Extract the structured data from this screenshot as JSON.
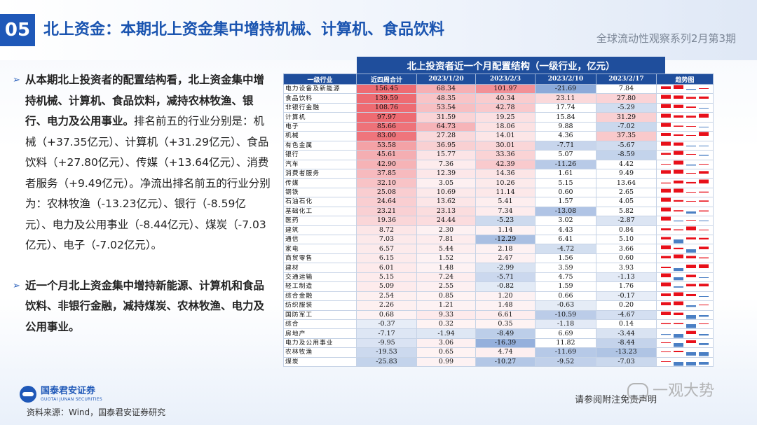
{
  "header": {
    "section": "05",
    "title": "北上资金：本期北上资金集中增持机械、计算机、食品饮料",
    "series": "全球流动性观察系列2月第3期"
  },
  "bullets": [
    {
      "bold": "从本期北上投资者的配置结构看，北上资金集中增持机械、计算机、食品饮料，减持农林牧渔、银行、电力及公用事业。",
      "normal": "排名前五的行业分别是：机械（+37.35亿元）、计算机（+31.29亿元）、食品饮料（+27.80亿元）、传媒（+13.64亿元）、消费者服务（+9.49亿元）。净流出排名前五的行业分别为：农林牧渔（-13.23亿元）、银行（-8.59亿元）、电力及公用事业（-8.44亿元）、煤炭（-7.03亿元）、电子（-7.02亿元）。"
    },
    {
      "bold": "近一个月北上资金集中增持新能源、计算机和食品饮料、非银行金融，减持煤炭、农林牧渔、电力及公用事业。",
      "normal": ""
    }
  ],
  "table": {
    "title": "北上投资者近一个月配置结构（一级行业，亿元）",
    "headers": [
      "一级行业",
      "近四周合计",
      "2023/1/20",
      "2023/2/3",
      "2023/2/10",
      "2023/2/17",
      "趋势图"
    ],
    "rows": [
      [
        "电力设备及新能源",
        156.45,
        68.34,
        101.97,
        -21.69,
        7.84
      ],
      [
        "食品饮料",
        139.59,
        48.35,
        40.34,
        23.11,
        27.8
      ],
      [
        "非银行金融",
        108.76,
        53.54,
        42.78,
        17.74,
        -5.29
      ],
      [
        "计算机",
        97.97,
        31.59,
        19.25,
        15.84,
        31.29
      ],
      [
        "电子",
        85.66,
        64.73,
        18.06,
        9.88,
        -7.02
      ],
      [
        "机械",
        83.0,
        27.28,
        14.01,
        4.36,
        37.35
      ],
      [
        "有色金属",
        53.58,
        36.95,
        30.01,
        -7.71,
        -5.67
      ],
      [
        "银行",
        45.61,
        15.77,
        33.36,
        5.07,
        -8.59
      ],
      [
        "汽车",
        42.9,
        7.36,
        42.39,
        -11.26,
        4.42
      ],
      [
        "消费者服务",
        37.85,
        12.39,
        14.36,
        1.61,
        9.49
      ],
      [
        "传媒",
        32.1,
        3.05,
        10.26,
        5.15,
        13.64
      ],
      [
        "钢铁",
        25.08,
        10.69,
        11.14,
        0.6,
        2.65
      ],
      [
        "石油石化",
        24.64,
        13.62,
        5.41,
        1.57,
        4.05
      ],
      [
        "基础化工",
        23.21,
        23.13,
        7.34,
        -13.08,
        5.82
      ],
      [
        "医药",
        19.36,
        24.44,
        -5.23,
        3.02,
        -2.87
      ],
      [
        "建筑",
        8.72,
        2.3,
        1.14,
        4.43,
        0.84
      ],
      [
        "通信",
        7.03,
        7.81,
        -12.29,
        6.41,
        5.1
      ],
      [
        "家电",
        6.57,
        5.44,
        2.18,
        -4.72,
        3.66
      ],
      [
        "商贸零售",
        6.15,
        1.52,
        2.47,
        1.56,
        0.6
      ],
      [
        "建材",
        6.01,
        1.48,
        -2.99,
        3.59,
        3.93
      ],
      [
        "交通运输",
        5.15,
        7.24,
        -5.71,
        4.75,
        -1.13
      ],
      [
        "轻工制造",
        5.09,
        2.55,
        -0.82,
        1.59,
        1.76
      ],
      [
        "综合金融",
        2.54,
        0.85,
        1.2,
        0.66,
        -0.17
      ],
      [
        "纺织服装",
        2.26,
        1.21,
        1.48,
        -0.63,
        0.2
      ],
      [
        "国防军工",
        0.68,
        9.33,
        6.61,
        -10.59,
        -4.67
      ],
      [
        "综合",
        -0.37,
        0.32,
        0.35,
        -1.18,
        0.14
      ],
      [
        "房地产",
        -7.17,
        -1.94,
        -8.49,
        6.69,
        -3.44
      ],
      [
        "电力及公用事业",
        -9.95,
        3.06,
        -16.39,
        11.82,
        -8.44
      ],
      [
        "农林牧渔",
        -19.53,
        0.65,
        4.74,
        -11.69,
        -13.23
      ],
      [
        "煤炭",
        -25.83,
        0.99,
        -10.27,
        -9.52,
        -7.03
      ]
    ]
  },
  "footer": {
    "logo_cn": "国泰君安证券",
    "logo_en": "GUOTAI JUNAN SECURITIES",
    "source": "资料来源：Wind，国泰君安证券研究",
    "disclaimer": "请参阅附注免责声明",
    "watermark": "一观大势"
  },
  "colors": {
    "positive": "#e8101a",
    "negative": "#4a7fc4",
    "header_bg": "#1f4e9c",
    "accent": "#1f58b8"
  }
}
